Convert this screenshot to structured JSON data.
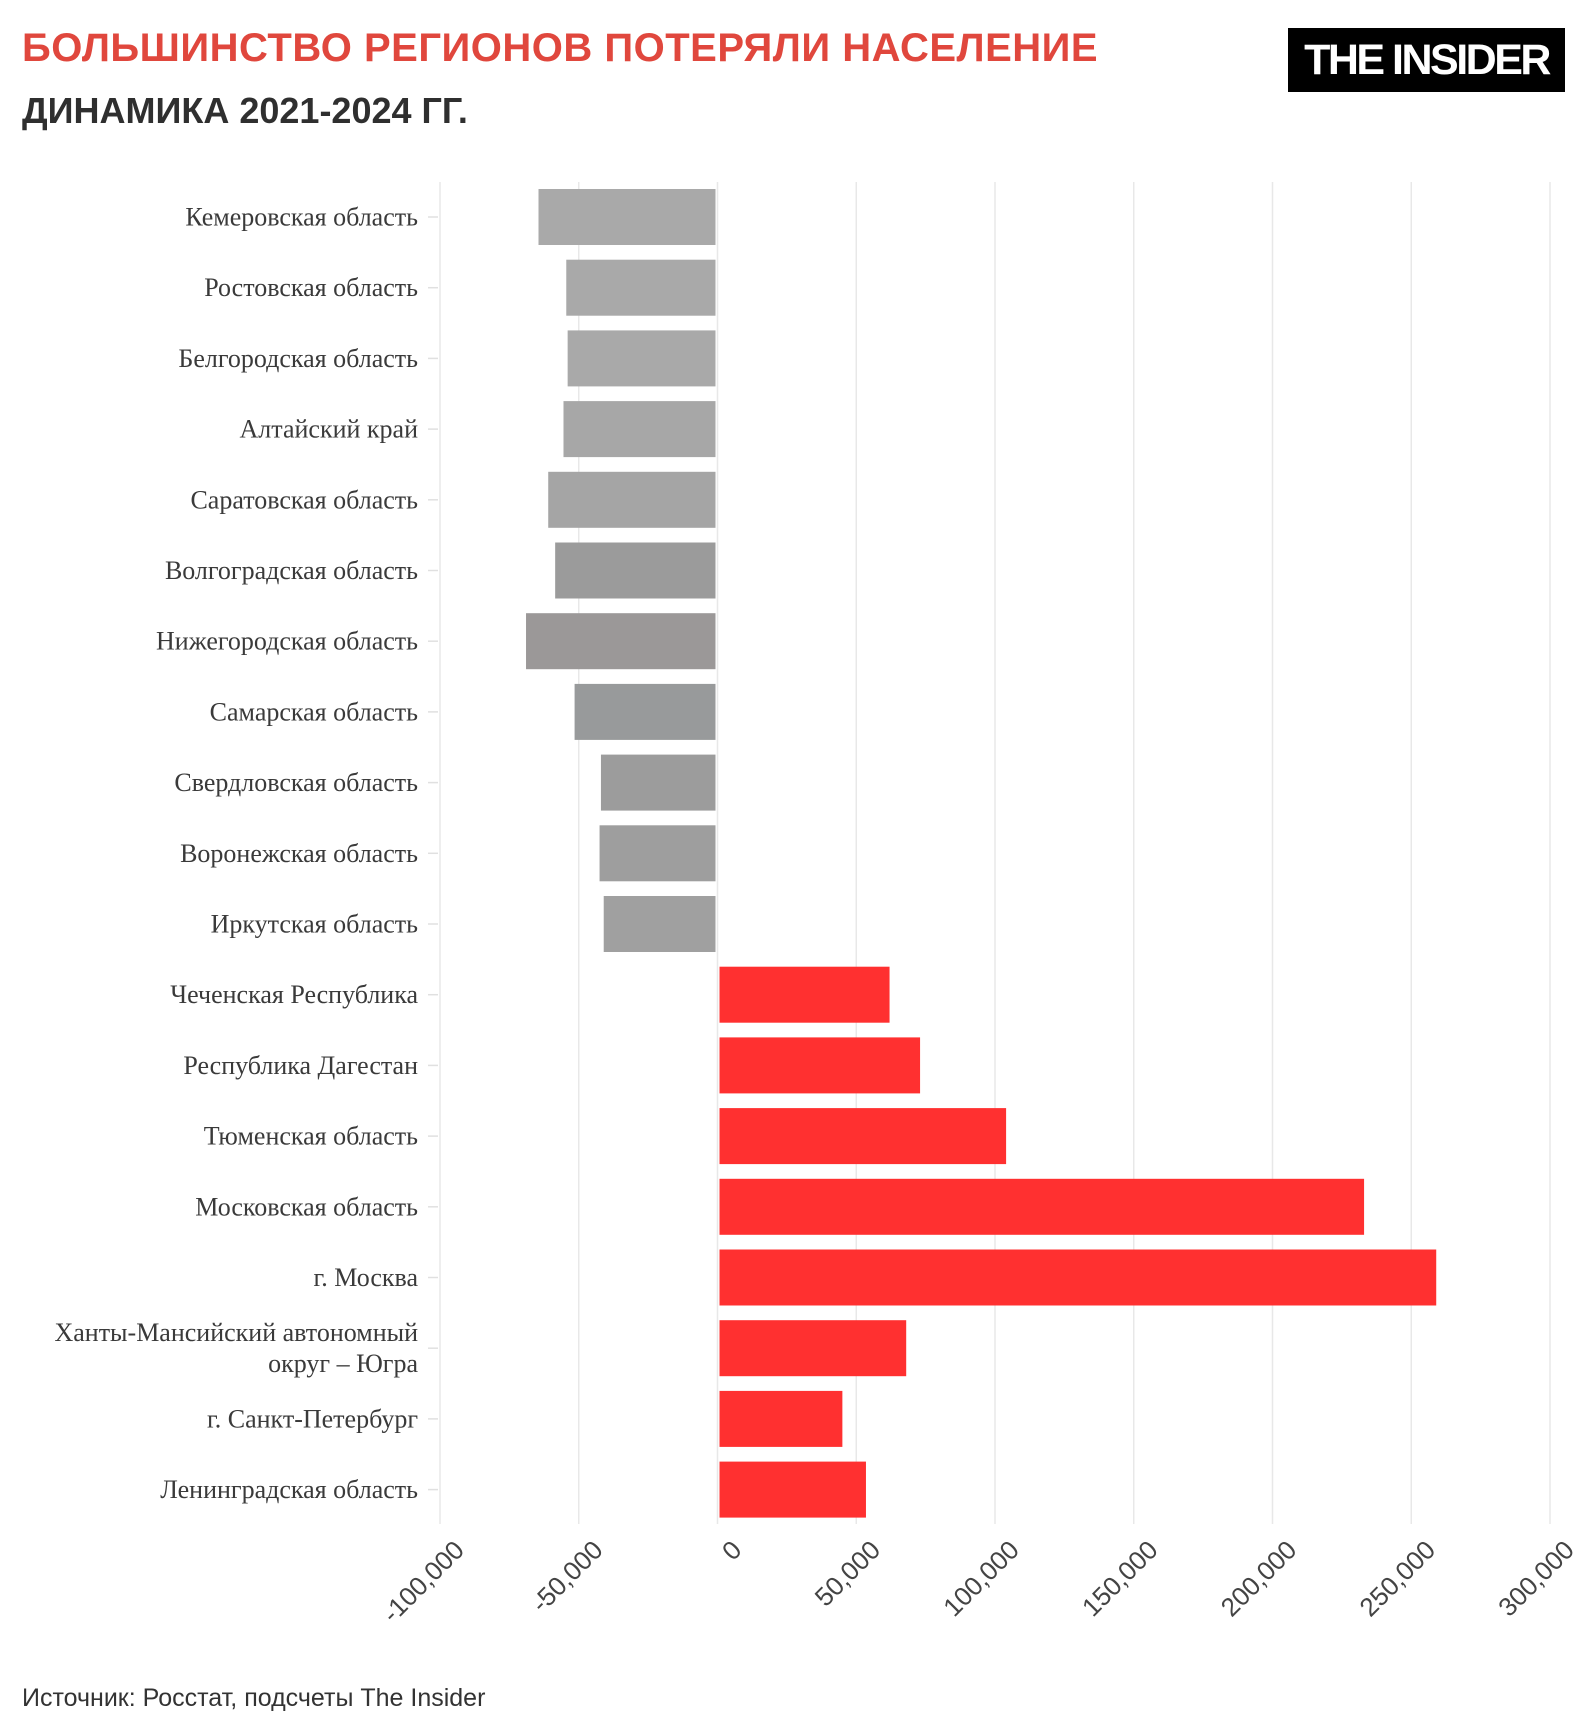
{
  "header": {
    "title": "БОЛЬШИНСТВО РЕГИОНОВ ПОТЕРЯЛИ НАСЕЛЕНИЕ",
    "subtitle": "ДИНАМИКА 2021-2024 ГГ.",
    "logo_text": "THE INSIDER"
  },
  "footer": {
    "source": "Источник: Росстат, подсчеты The Insider"
  },
  "colors": {
    "title": "#e0473d",
    "positive_bar": "#ff3030",
    "negative_bar": "#a3a3a3",
    "grid": "#e8e8e8"
  },
  "chart_data": {
    "type": "bar",
    "orientation": "horizontal",
    "grid": true,
    "xlim": [
      -100000,
      300000
    ],
    "x_ticks": [
      -100000,
      -50000,
      0,
      50000,
      100000,
      150000,
      200000,
      250000,
      300000
    ],
    "x_tick_labels": [
      "-100,000",
      "-50,000",
      "0",
      "50,000",
      "100,000",
      "150,000",
      "200,000",
      "250,000",
      "300,000"
    ],
    "categories": [
      "Кемеровская область",
      "Ростовская область",
      "Белгородская область",
      "Алтайский край",
      "Саратовская область",
      "Волгоградская область",
      "Нижегородская область",
      "Самарская область",
      "Свердловская область",
      "Воронежская область",
      "Иркутская область",
      "Чеченская Республика",
      "Республика Дагестан",
      "Тюменская область",
      "Московская область",
      "г. Москва",
      "Ханты-Мансийский автономный округ – Югра",
      "г. Санкт-Петербург",
      "Ленинградская область"
    ],
    "category_lines": [
      [
        "Кемеровская область"
      ],
      [
        "Ростовская область"
      ],
      [
        "Белгородская область"
      ],
      [
        "Алтайский край"
      ],
      [
        "Саратовская область"
      ],
      [
        "Волгоградская область"
      ],
      [
        "Нижегородская область"
      ],
      [
        "Самарская область"
      ],
      [
        "Свердловская область"
      ],
      [
        "Воронежская область"
      ],
      [
        "Иркутская область"
      ],
      [
        "Чеченская Республика"
      ],
      [
        "Республика Дагестан"
      ],
      [
        "Тюменская область"
      ],
      [
        "Московская область"
      ],
      [
        "г. Москва"
      ],
      [
        "Ханты-Мансийский автономный",
        "округ – Югра"
      ],
      [
        "г. Санкт-Петербург"
      ],
      [
        "Ленинградская область"
      ]
    ],
    "values": [
      -64500,
      -54500,
      -54000,
      -55500,
      -61000,
      -58500,
      -69000,
      -51500,
      -42000,
      -42500,
      -41000,
      62000,
      73000,
      104000,
      233000,
      259000,
      68000,
      45000,
      53500
    ],
    "bar_colors": [
      "#a9a9a9",
      "#a9a9a9",
      "#a9a9a9",
      "#a7a7a7",
      "#a5a5a5",
      "#9b9b9b",
      "#9b9898",
      "#989a9b",
      "#9c9c9c",
      "#9e9e9e",
      "#a0a0a0",
      "#ff3030",
      "#ff3030",
      "#ff3030",
      "#ff3030",
      "#ff3030",
      "#ff3030",
      "#ff3030",
      "#ff3030"
    ]
  }
}
